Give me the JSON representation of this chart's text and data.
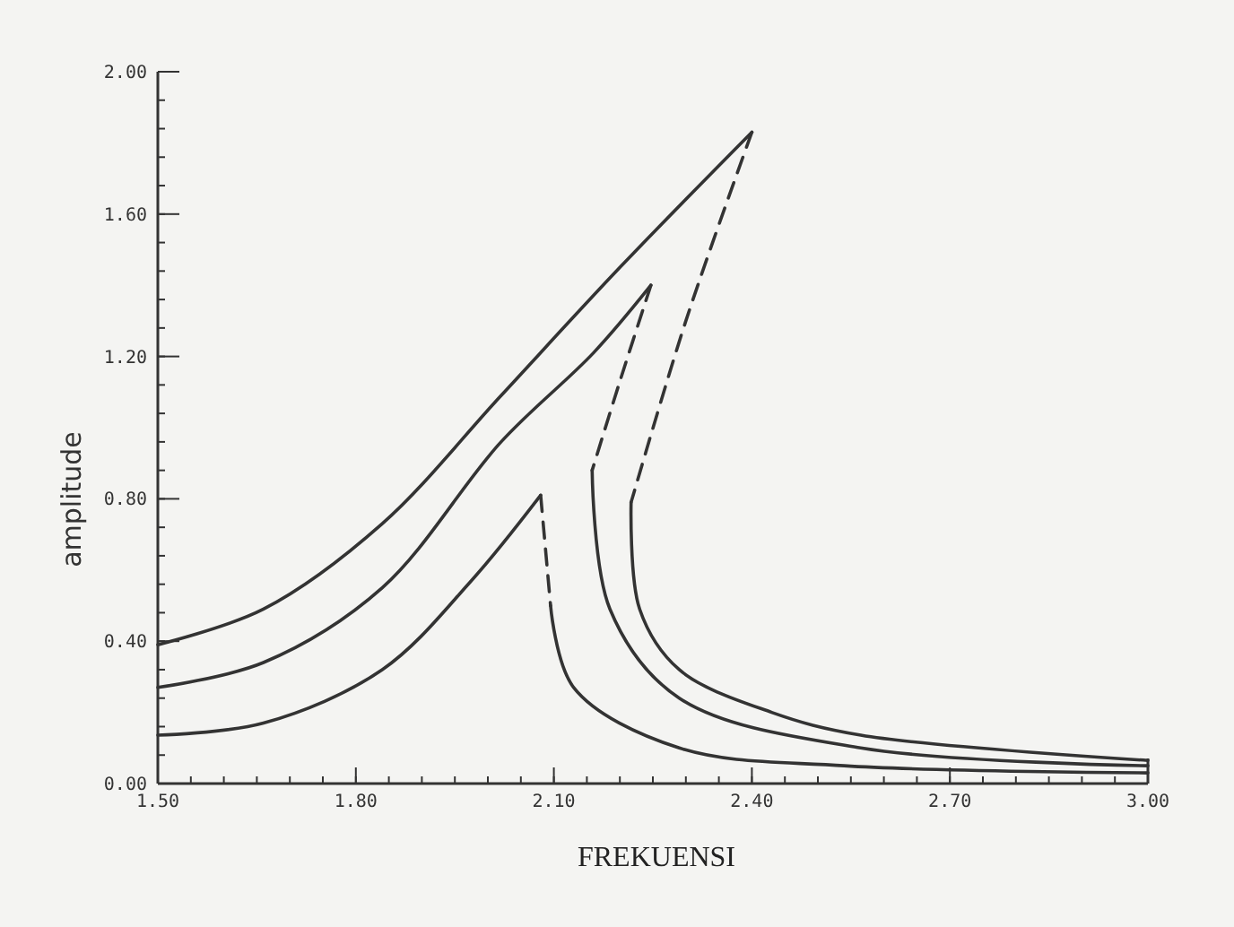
{
  "chart_data": {
    "type": "line",
    "xlabel": "FREKUENSI",
    "ylabel": "amplitude",
    "xlim": [
      1.5,
      3.0
    ],
    "ylim": [
      0,
      2.0
    ],
    "xticks": [
      {
        "value": 1.5,
        "label": "1.50"
      },
      {
        "value": 1.8,
        "label": "1.80"
      },
      {
        "value": 2.1,
        "label": "2.10"
      },
      {
        "value": 2.4,
        "label": "2.40"
      },
      {
        "value": 2.7,
        "label": "2.70"
      },
      {
        "value": 3.0,
        "label": "3.00"
      }
    ],
    "yticks": [
      {
        "value": 0,
        "label": "0.00"
      },
      {
        "value": 0.4,
        "label": "0.40"
      },
      {
        "value": 0.8,
        "label": "0.80"
      },
      {
        "value": 1.2,
        "label": "1.20"
      },
      {
        "value": 1.6,
        "label": "1.60"
      },
      {
        "value": 2.0,
        "label": "2.00"
      }
    ],
    "grid": false,
    "marker": "none",
    "series": [
      {
        "color": "#333333",
        "line_style": "solid",
        "x": [
          1.5,
          1.66,
          1.84,
          2.02,
          2.2,
          2.4
        ],
        "values": [
          0.39,
          0.49,
          0.73,
          1.09,
          1.45,
          1.83
        ]
      },
      {
        "color": "#333333",
        "line_style": "dashed",
        "x": [
          2.4,
          2.3,
          2.217
        ],
        "values": [
          1.83,
          1.3,
          0.79
        ]
      },
      {
        "color": "#333333",
        "line_style": "solid",
        "x": [
          2.217,
          2.23,
          2.29,
          2.43,
          2.565,
          3.0
        ],
        "values": [
          0.79,
          0.49,
          0.32,
          0.2,
          0.136,
          0.065
        ]
      },
      {
        "color": "#333333",
        "line_style": "solid",
        "x": [
          1.5,
          1.66,
          1.84,
          2.02,
          2.16,
          2.247
        ],
        "values": [
          0.27,
          0.34,
          0.55,
          0.96,
          1.21,
          1.4
        ]
      },
      {
        "color": "#333333",
        "line_style": "dashed",
        "x": [
          2.247,
          2.2,
          2.158
        ],
        "values": [
          1.4,
          1.13,
          0.88
        ]
      },
      {
        "color": "#333333",
        "line_style": "solid",
        "x": [
          2.158,
          2.185,
          2.29,
          2.565,
          3.0
        ],
        "values": [
          0.88,
          0.49,
          0.24,
          0.1,
          0.05
        ]
      },
      {
        "color": "#333333",
        "line_style": "solid",
        "x": [
          1.5,
          1.66,
          1.84,
          1.975,
          2.08
        ],
        "values": [
          0.136,
          0.17,
          0.32,
          0.57,
          0.81
        ]
      },
      {
        "color": "#333333",
        "line_style": "dashed",
        "x": [
          2.08,
          2.095
        ],
        "values": [
          0.81,
          0.5
        ]
      },
      {
        "color": "#333333",
        "line_style": "solid",
        "x": [
          2.095,
          2.13,
          2.29,
          2.54,
          3.0
        ],
        "values": [
          0.5,
          0.27,
          0.1,
          0.05,
          0.03
        ]
      }
    ]
  }
}
